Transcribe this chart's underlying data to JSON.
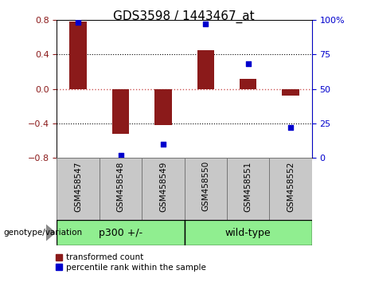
{
  "title": "GDS3598 / 1443467_at",
  "categories": [
    "GSM458547",
    "GSM458548",
    "GSM458549",
    "GSM458550",
    "GSM458551",
    "GSM458552"
  ],
  "red_bars": [
    0.78,
    -0.52,
    -0.42,
    0.45,
    0.12,
    -0.08
  ],
  "blue_dots": [
    98,
    2,
    10,
    97,
    68,
    22
  ],
  "ylim_left": [
    -0.8,
    0.8
  ],
  "ylim_right": [
    0,
    100
  ],
  "yticks_left": [
    -0.8,
    -0.4,
    0,
    0.4,
    0.8
  ],
  "yticks_right": [
    0,
    25,
    50,
    75,
    100
  ],
  "ytick_labels_right": [
    "0",
    "25",
    "50",
    "75",
    "100%"
  ],
  "bar_color": "#8B1A1A",
  "dot_color": "#0000CD",
  "zero_line_color": "#CD5555",
  "grid_color": "#000000",
  "group1_label": "p300 +/-",
  "group2_label": "wild-type",
  "group1_indices": [
    0,
    1,
    2
  ],
  "group2_indices": [
    3,
    4,
    5
  ],
  "group_color": "#90EE90",
  "bar_width": 0.4,
  "legend_red_label": "transformed count",
  "legend_blue_label": "percentile rank within the sample",
  "genotype_label": "genotype/variation",
  "background_plot": "#FFFFFF",
  "background_tick": "#C8C8C8",
  "title_fontsize": 11,
  "axis_fontsize": 8,
  "xlabel_fontsize": 7.5
}
